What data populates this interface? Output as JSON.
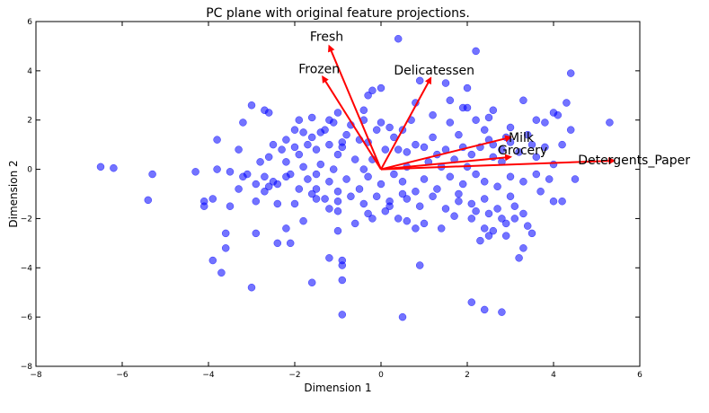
{
  "chart_data": {
    "type": "scatter",
    "title": "PC plane with original feature projections.",
    "xlabel": "Dimension 1",
    "ylabel": "Dimension 2",
    "xlim": [
      -8,
      6
    ],
    "ylim": [
      -8,
      6
    ],
    "xticks": [
      -8,
      -6,
      -4,
      -2,
      0,
      2,
      4,
      6
    ],
    "yticks": [
      -8,
      -6,
      -4,
      -2,
      0,
      2,
      4,
      6
    ],
    "xtick_labels": [
      "−8",
      "−6",
      "−4",
      "−2",
      "0",
      "2",
      "4",
      "6"
    ],
    "ytick_labels": [
      "−8",
      "−6",
      "−4",
      "−2",
      "0",
      "2",
      "4",
      "6"
    ],
    "grid": false,
    "point_color": "#0000ff",
    "point_opacity": 0.55,
    "arrow_color": "#ff0000",
    "points": [
      [
        -6.5,
        0.1
      ],
      [
        -6.2,
        0.05
      ],
      [
        -5.3,
        -0.2
      ],
      [
        -5.4,
        -1.25
      ],
      [
        -4.3,
        -0.1
      ],
      [
        -4.1,
        -1.3
      ],
      [
        -4.1,
        -1.5
      ],
      [
        -3.6,
        -3.2
      ],
      [
        -3.6,
        -2.6
      ],
      [
        -3.9,
        -3.7
      ],
      [
        -3.7,
        -4.2
      ],
      [
        -3.8,
        0.0
      ],
      [
        -3.9,
        -1.2
      ],
      [
        -3.8,
        1.2
      ],
      [
        -3.5,
        -0.1
      ],
      [
        -3.5,
        -1.5
      ],
      [
        -3.3,
        -0.8
      ],
      [
        -3.2,
        -0.3
      ],
      [
        -3.3,
        0.8
      ],
      [
        -3.2,
        1.9
      ],
      [
        -3.0,
        2.6
      ],
      [
        -2.9,
        -2.6
      ],
      [
        -2.7,
        2.4
      ],
      [
        -2.6,
        2.3
      ],
      [
        -2.5,
        -0.5
      ],
      [
        -2.4,
        -1.4
      ],
      [
        -2.4,
        -3.0
      ],
      [
        -2.1,
        -3.0
      ],
      [
        -3.0,
        -4.8
      ],
      [
        -1.9,
        2.0
      ],
      [
        -1.8,
        -2.1
      ],
      [
        -1.6,
        2.1
      ],
      [
        -1.5,
        -0.2
      ],
      [
        -1.4,
        1.5
      ],
      [
        -1.2,
        1.0
      ],
      [
        -1.0,
        -1.7
      ],
      [
        -1.0,
        -2.5
      ],
      [
        -1.0,
        2.3
      ],
      [
        -1.2,
        -3.6
      ],
      [
        -1.6,
        -4.6
      ],
      [
        -0.9,
        -3.9
      ],
      [
        -0.9,
        -3.7
      ],
      [
        -0.9,
        -4.5
      ],
      [
        -0.9,
        -5.9
      ],
      [
        0.5,
        -6.0
      ],
      [
        -0.6,
        -2.2
      ],
      [
        -0.4,
        2.4
      ],
      [
        -0.3,
        -1.8
      ],
      [
        -0.2,
        3.2
      ],
      [
        -0.3,
        3.0
      ],
      [
        0.0,
        3.3
      ],
      [
        0.4,
        5.3
      ],
      [
        0.9,
        3.6
      ],
      [
        0.4,
        -2.0
      ],
      [
        0.6,
        -2.1
      ],
      [
        0.8,
        2.7
      ],
      [
        1.2,
        2.2
      ],
      [
        1.5,
        3.5
      ],
      [
        1.6,
        2.8
      ],
      [
        1.9,
        2.5
      ],
      [
        2.2,
        2.0
      ],
      [
        2.0,
        2.5
      ],
      [
        2.2,
        4.8
      ],
      [
        2.0,
        3.3
      ],
      [
        2.5,
        2.1
      ],
      [
        2.6,
        2.4
      ],
      [
        2.8,
        0.8
      ],
      [
        3.0,
        1.7
      ],
      [
        3.3,
        2.8
      ],
      [
        3.6,
        2.0
      ],
      [
        3.8,
        1.9
      ],
      [
        4.0,
        2.3
      ],
      [
        4.1,
        2.2
      ],
      [
        4.4,
        3.9
      ],
      [
        4.3,
        2.7
      ],
      [
        4.4,
        1.6
      ],
      [
        5.3,
        1.9
      ],
      [
        4.5,
        -0.4
      ],
      [
        4.0,
        -1.3
      ],
      [
        4.2,
        -1.3
      ],
      [
        3.7,
        -0.9
      ],
      [
        3.1,
        -1.5
      ],
      [
        3.5,
        -2.6
      ],
      [
        3.4,
        -2.3
      ],
      [
        3.3,
        -3.2
      ],
      [
        3.2,
        -3.6
      ],
      [
        2.9,
        -2.7
      ],
      [
        2.6,
        -2.5
      ],
      [
        2.3,
        -2.9
      ],
      [
        2.5,
        -2.7
      ],
      [
        2.4,
        -2.4
      ],
      [
        2.1,
        -2.0
      ],
      [
        2.1,
        -5.4
      ],
      [
        2.4,
        -5.7
      ],
      [
        2.8,
        -5.8
      ],
      [
        0.9,
        -3.9
      ],
      [
        0.8,
        -2.4
      ],
      [
        1.7,
        -1.9
      ],
      [
        1.8,
        -1.3
      ],
      [
        0.5,
        -1.0
      ],
      [
        0.2,
        -1.5
      ],
      [
        -1.2,
        -1.6
      ],
      [
        -1.5,
        -1.2
      ],
      [
        -2.0,
        -1.4
      ],
      [
        -2.2,
        -2.4
      ],
      [
        -2.9,
        -1.3
      ],
      [
        -2.7,
        -0.9
      ],
      [
        -2.9,
        -0.6
      ],
      [
        -2.2,
        -0.3
      ],
      [
        -2.6,
        -0.7
      ],
      [
        -1.4,
        0.2
      ],
      [
        -2.6,
        0.5
      ],
      [
        -2.3,
        0.8
      ],
      [
        -2.2,
        1.2
      ],
      [
        -2.0,
        0.9
      ],
      [
        -1.8,
        1.5
      ],
      [
        -1.7,
        1.0
      ],
      [
        -1.9,
        0.6
      ],
      [
        -2.2,
        0.3
      ],
      [
        -1.5,
        0.8
      ],
      [
        -1.3,
        1.6
      ],
      [
        -1.1,
        1.9
      ],
      [
        -1.0,
        0.6
      ],
      [
        -0.8,
        1.4
      ],
      [
        -0.9,
        0.9
      ],
      [
        -0.7,
        1.8
      ],
      [
        -0.5,
        1.2
      ],
      [
        -0.6,
        0.4
      ],
      [
        -0.3,
        1.1
      ],
      [
        -0.1,
        1.6
      ],
      [
        0.0,
        1.9
      ],
      [
        0.2,
        1.7
      ],
      [
        0.3,
        1.3
      ],
      [
        0.1,
        0.8
      ],
      [
        -0.2,
        0.4
      ],
      [
        0.4,
        0.8
      ],
      [
        0.6,
        0.7
      ],
      [
        0.8,
        1.0
      ],
      [
        1.0,
        0.9
      ],
      [
        1.1,
        0.3
      ],
      [
        1.3,
        0.6
      ],
      [
        1.5,
        0.8
      ],
      [
        1.7,
        0.4
      ],
      [
        1.9,
        0.9
      ],
      [
        2.1,
        0.6
      ],
      [
        2.3,
        0.9
      ],
      [
        2.5,
        1.2
      ],
      [
        2.6,
        0.5
      ],
      [
        2.8,
        0.3
      ],
      [
        3.0,
        1.1
      ],
      [
        3.2,
        0.7
      ],
      [
        3.4,
        1.4
      ],
      [
        3.6,
        0.5
      ],
      [
        3.8,
        0.9
      ],
      [
        4.0,
        0.2
      ],
      [
        4.2,
        1.0
      ],
      [
        3.9,
        -0.4
      ],
      [
        3.6,
        -0.2
      ],
      [
        3.3,
        -0.5
      ],
      [
        3.0,
        -0.3
      ],
      [
        2.7,
        -0.7
      ],
      [
        2.4,
        -0.5
      ],
      [
        2.2,
        -0.2
      ],
      [
        1.9,
        -0.6
      ],
      [
        1.6,
        -0.3
      ],
      [
        1.3,
        -0.8
      ],
      [
        1.0,
        -0.4
      ],
      [
        0.8,
        -0.9
      ],
      [
        0.5,
        -0.5
      ],
      [
        0.3,
        -0.2
      ],
      [
        0.0,
        -0.6
      ],
      [
        -0.3,
        -0.3
      ],
      [
        -0.5,
        -0.8
      ],
      [
        -0.8,
        -0.4
      ],
      [
        -1.0,
        -0.9
      ],
      [
        -1.2,
        -0.5
      ],
      [
        -1.5,
        -0.8
      ],
      [
        -1.7,
        -0.4
      ],
      [
        -1.9,
        -0.8
      ],
      [
        -2.1,
        -0.2
      ],
      [
        -2.4,
        -0.6
      ],
      [
        -1.6,
        -1.0
      ],
      [
        -1.3,
        -1.2
      ],
      [
        -1.0,
        -1.3
      ],
      [
        -0.7,
        -1.1
      ],
      [
        -0.4,
        -1.4
      ],
      [
        -0.1,
        -1.1
      ],
      [
        0.2,
        -1.3
      ],
      [
        0.6,
        -1.2
      ],
      [
        0.9,
        -1.5
      ],
      [
        1.2,
        -1.1
      ],
      [
        1.5,
        -1.6
      ],
      [
        1.8,
        -1.0
      ],
      [
        2.1,
        -1.4
      ],
      [
        2.4,
        -1.2
      ],
      [
        2.7,
        -1.6
      ],
      [
        3.0,
        -1.1
      ],
      [
        3.3,
        -1.8
      ],
      [
        2.8,
        -2.0
      ],
      [
        2.5,
        -1.8
      ],
      [
        2.2,
        -1.7
      ],
      [
        2.9,
        -2.2
      ],
      [
        3.1,
        -2.0
      ],
      [
        -1.8,
        0.1
      ],
      [
        -1.1,
        0.0
      ],
      [
        -0.4,
        0.0
      ],
      [
        0.6,
        0.1
      ],
      [
        1.4,
        0.1
      ],
      [
        2.0,
        0.1
      ],
      [
        -2.0,
        1.6
      ],
      [
        -1.6,
        1.3
      ],
      [
        -0.9,
        1.1
      ],
      [
        0.5,
        1.6
      ],
      [
        1.2,
        1.3
      ],
      [
        1.8,
        1.4
      ],
      [
        2.4,
        1.6
      ],
      [
        2.9,
        1.3
      ],
      [
        -0.2,
        -2.0
      ],
      [
        0.1,
        -1.7
      ],
      [
        1.0,
        -2.2
      ],
      [
        1.4,
        -2.4
      ],
      [
        -2.5,
        1.0
      ],
      [
        -2.8,
        0.3
      ],
      [
        -3.1,
        -0.2
      ],
      [
        -2.7,
        -0.3
      ],
      [
        -1.2,
        2.0
      ],
      [
        -0.4,
        2.0
      ],
      [
        0.7,
        2.0
      ],
      [
        1.6,
        1.9
      ],
      [
        2.6,
        1.0
      ],
      [
        3.5,
        1.0
      ]
    ],
    "vectors": [
      {
        "name": "Fresh",
        "x": -1.2,
        "y": 5.0
      },
      {
        "name": "Frozen",
        "x": -1.35,
        "y": 3.75
      },
      {
        "name": "Delicatessen",
        "x": 1.15,
        "y": 3.7
      },
      {
        "name": "Milk",
        "x": 3.0,
        "y": 1.3
      },
      {
        "name": "Grocery",
        "x": 3.0,
        "y": 0.5
      },
      {
        "name": "Detergents_Paper",
        "x": 5.4,
        "y": 0.35
      }
    ]
  }
}
